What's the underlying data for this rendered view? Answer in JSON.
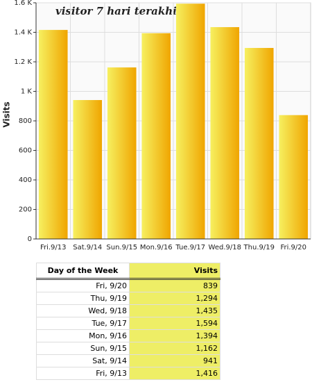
{
  "chart_data": {
    "type": "bar",
    "title": "visitor 7 hari terakhir",
    "y_label": "Visits",
    "categories": [
      "Fri.9/13",
      "Sat.9/14",
      "Sun.9/15",
      "Mon.9/16",
      "Tue.9/17",
      "Wed.9/18",
      "Thu.9/19",
      "Fri.9/20"
    ],
    "values": [
      1416,
      941,
      1162,
      1394,
      1594,
      1435,
      1294,
      839
    ],
    "color": "#f0a500",
    "ylim": [
      0,
      1600
    ],
    "yticks": [
      0,
      200,
      400,
      600,
      800,
      {
        "value": 1000,
        "label": "1 K"
      },
      {
        "value": 1200,
        "label": "1.2 K"
      },
      {
        "value": 1400,
        "label": "1.4 K"
      },
      {
        "value": 1600,
        "label": "1.6 K"
      }
    ],
    "grid": true
  },
  "table": {
    "columns": [
      "Day of the Week",
      "Visits"
    ],
    "rows": [
      [
        "Fri, 9/20",
        "839"
      ],
      [
        "Thu, 9/19",
        "1,294"
      ],
      [
        "Wed, 9/18",
        "1,435"
      ],
      [
        "Tue, 9/17",
        "1,594"
      ],
      [
        "Mon, 9/16",
        "1,394"
      ],
      [
        "Sun, 9/15",
        "1,162"
      ],
      [
        "Sat, 9/14",
        "941"
      ],
      [
        "Fri, 9/13",
        "1,416"
      ]
    ]
  }
}
